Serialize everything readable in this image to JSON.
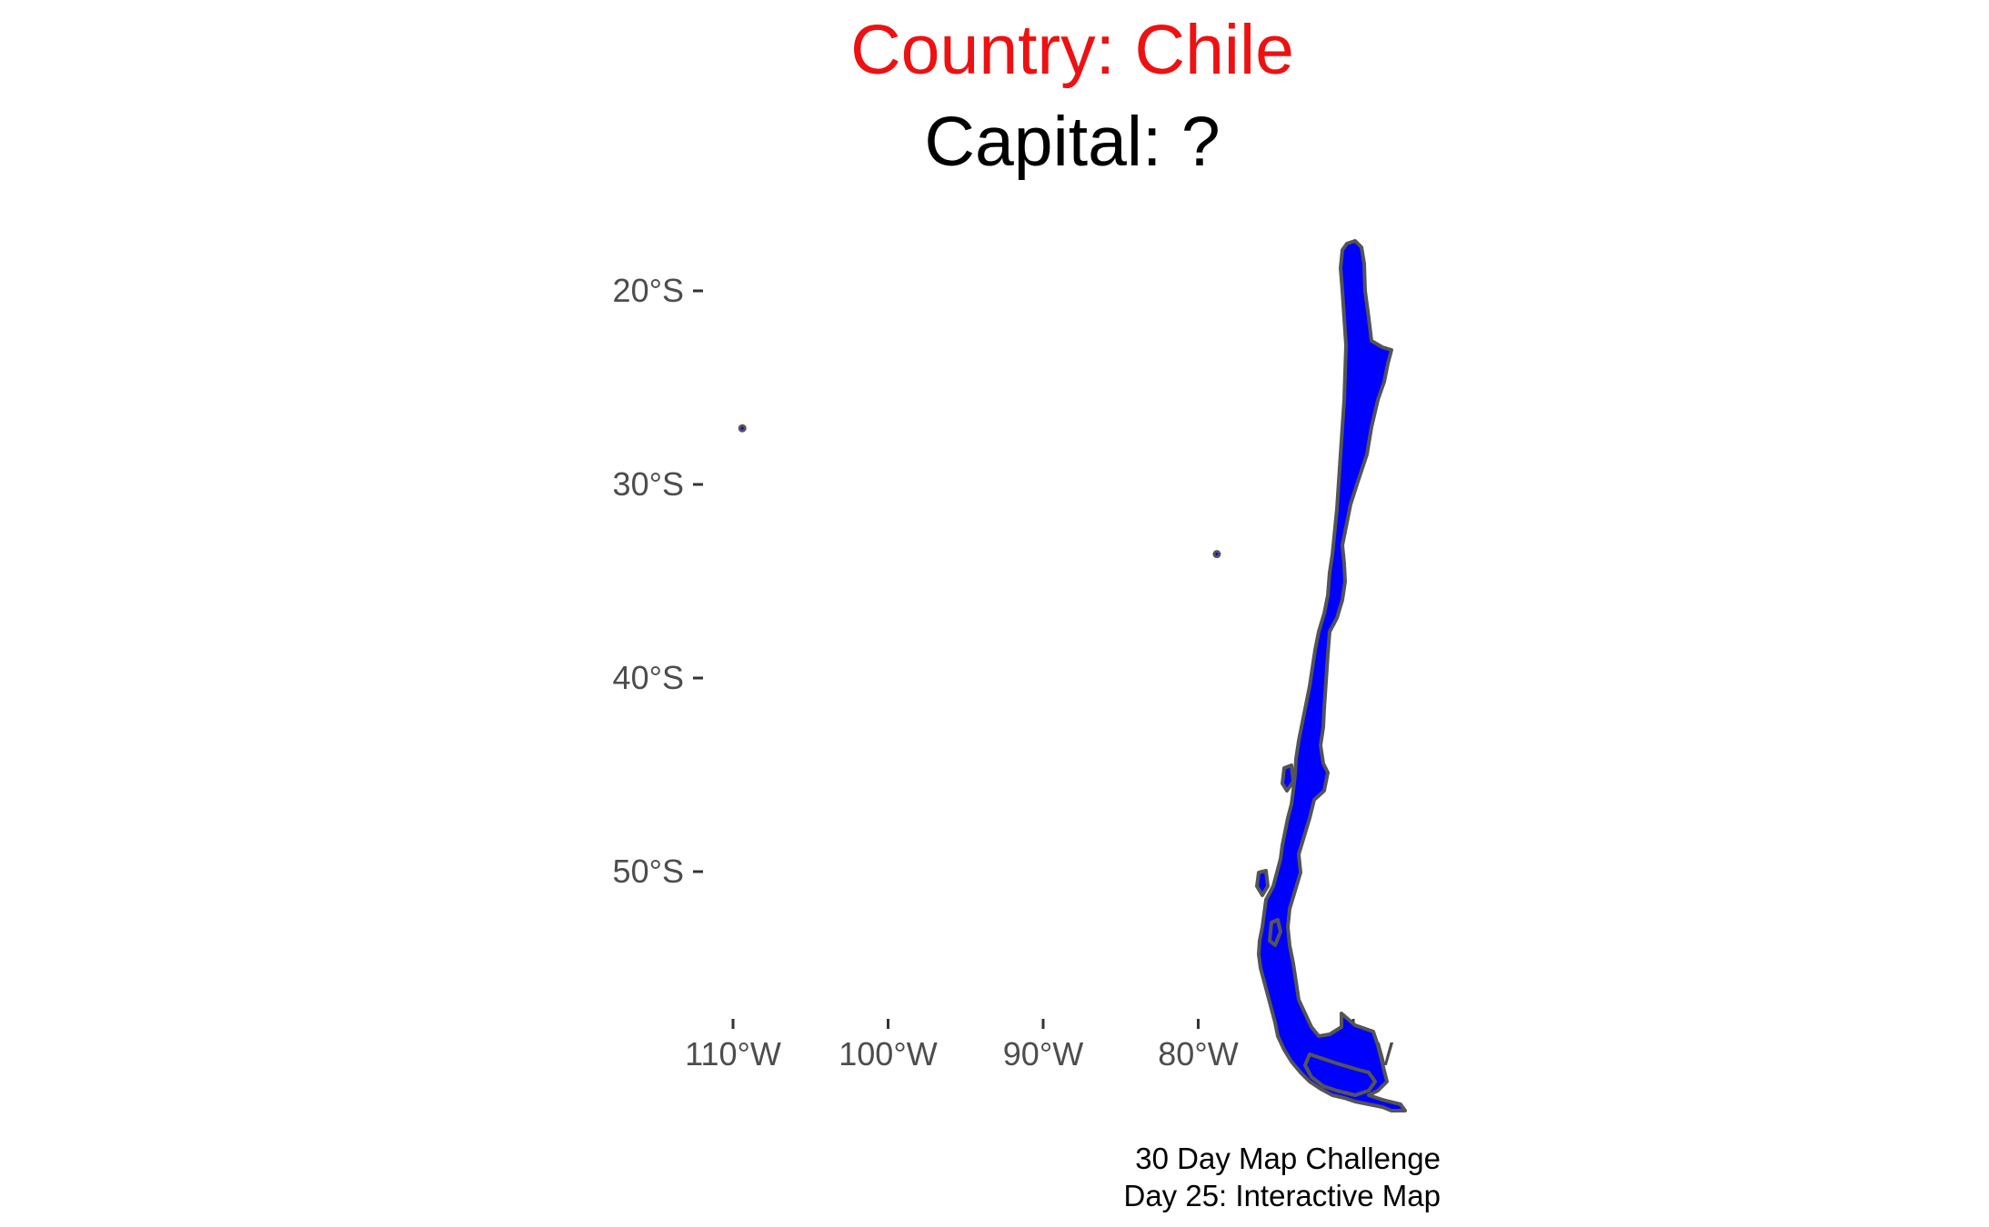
{
  "title": {
    "country_line": "Country: Chile",
    "capital_line": "Capital: ?",
    "country_color": "#ee1111",
    "capital_color": "#000000"
  },
  "map": {
    "country": "Chile",
    "fill_color": "#0000ff",
    "border_color": "#555555",
    "projection": "longitude-latitude",
    "latitude_axis": {
      "ticks": [
        -20,
        -30,
        -40,
        -50
      ],
      "labels": [
        "20°S",
        "30°S",
        "40°S",
        "50°S"
      ]
    },
    "longitude_axis": {
      "ticks": [
        -110,
        -100,
        -90,
        -80,
        -70
      ],
      "labels": [
        "110°W",
        "100°W",
        "90°W",
        "80°W",
        "70°W"
      ]
    },
    "grid": false,
    "outlying_islands": [
      {
        "lon": -109.4,
        "lat": -27.1
      },
      {
        "lon": -78.8,
        "lat": -33.6
      }
    ]
  },
  "caption": {
    "line1": "30 Day Map Challenge",
    "line2": "Day 25: Interactive Map"
  }
}
